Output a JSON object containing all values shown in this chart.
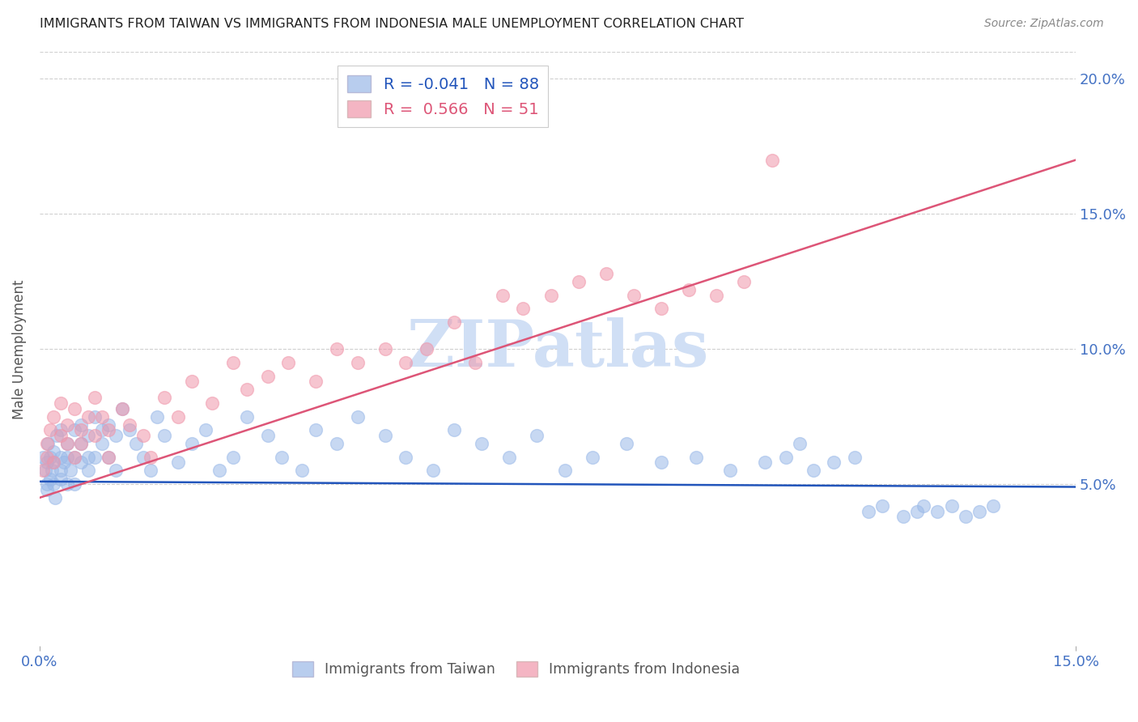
{
  "title": "IMMIGRANTS FROM TAIWAN VS IMMIGRANTS FROM INDONESIA MALE UNEMPLOYMENT CORRELATION CHART",
  "source": "Source: ZipAtlas.com",
  "ylabel_label": "Male Unemployment",
  "xmin": 0.0,
  "xmax": 0.15,
  "ymin": -0.01,
  "ymax": 0.21,
  "yticks": [
    0.05,
    0.1,
    0.15,
    0.2
  ],
  "ytick_labels": [
    "5.0%",
    "10.0%",
    "15.0%",
    "20.0%"
  ],
  "xticks": [
    0.0,
    0.15
  ],
  "xtick_labels": [
    "0.0%",
    "15.0%"
  ],
  "taiwan_color": "#9ab9e8",
  "indonesia_color": "#f096aa",
  "taiwan_R": -0.041,
  "taiwan_N": 88,
  "indonesia_R": 0.566,
  "indonesia_N": 51,
  "taiwan_line_color": "#2255bb",
  "indonesia_line_color": "#dd5577",
  "watermark_color": "#d0dff5",
  "background_color": "#ffffff",
  "grid_color": "#d0d0d0",
  "taiwan_x": [
    0.0005,
    0.0008,
    0.001,
    0.001,
    0.001,
    0.0012,
    0.0015,
    0.0015,
    0.0018,
    0.002,
    0.002,
    0.002,
    0.0022,
    0.0025,
    0.003,
    0.003,
    0.003,
    0.003,
    0.0035,
    0.004,
    0.004,
    0.004,
    0.0045,
    0.005,
    0.005,
    0.005,
    0.006,
    0.006,
    0.006,
    0.007,
    0.007,
    0.007,
    0.008,
    0.008,
    0.009,
    0.009,
    0.01,
    0.01,
    0.011,
    0.011,
    0.012,
    0.013,
    0.014,
    0.015,
    0.016,
    0.017,
    0.018,
    0.02,
    0.022,
    0.024,
    0.026,
    0.028,
    0.03,
    0.033,
    0.035,
    0.038,
    0.04,
    0.043,
    0.046,
    0.05,
    0.053,
    0.057,
    0.06,
    0.064,
    0.068,
    0.072,
    0.076,
    0.08,
    0.085,
    0.09,
    0.095,
    0.1,
    0.105,
    0.108,
    0.11,
    0.112,
    0.115,
    0.118,
    0.12,
    0.122,
    0.125,
    0.127,
    0.128,
    0.13,
    0.132,
    0.134,
    0.136,
    0.138
  ],
  "taiwan_y": [
    0.06,
    0.055,
    0.058,
    0.05,
    0.048,
    0.065,
    0.052,
    0.06,
    0.055,
    0.058,
    0.062,
    0.05,
    0.045,
    0.068,
    0.06,
    0.055,
    0.052,
    0.07,
    0.058,
    0.065,
    0.05,
    0.06,
    0.055,
    0.07,
    0.06,
    0.05,
    0.065,
    0.058,
    0.072,
    0.06,
    0.055,
    0.068,
    0.075,
    0.06,
    0.07,
    0.065,
    0.072,
    0.06,
    0.068,
    0.055,
    0.078,
    0.07,
    0.065,
    0.06,
    0.055,
    0.075,
    0.068,
    0.058,
    0.065,
    0.07,
    0.055,
    0.06,
    0.075,
    0.068,
    0.06,
    0.055,
    0.07,
    0.065,
    0.075,
    0.068,
    0.06,
    0.055,
    0.07,
    0.065,
    0.06,
    0.068,
    0.055,
    0.06,
    0.065,
    0.058,
    0.06,
    0.055,
    0.058,
    0.06,
    0.065,
    0.055,
    0.058,
    0.06,
    0.04,
    0.042,
    0.038,
    0.04,
    0.042,
    0.04,
    0.042,
    0.038,
    0.04,
    0.042
  ],
  "indonesia_x": [
    0.0005,
    0.001,
    0.001,
    0.0015,
    0.002,
    0.002,
    0.003,
    0.003,
    0.004,
    0.004,
    0.005,
    0.005,
    0.006,
    0.006,
    0.007,
    0.008,
    0.008,
    0.009,
    0.01,
    0.01,
    0.012,
    0.013,
    0.015,
    0.016,
    0.018,
    0.02,
    0.022,
    0.025,
    0.028,
    0.03,
    0.033,
    0.036,
    0.04,
    0.043,
    0.046,
    0.05,
    0.053,
    0.056,
    0.06,
    0.063,
    0.067,
    0.07,
    0.074,
    0.078,
    0.082,
    0.086,
    0.09,
    0.094,
    0.098,
    0.102,
    0.106
  ],
  "indonesia_y": [
    0.055,
    0.06,
    0.065,
    0.07,
    0.058,
    0.075,
    0.068,
    0.08,
    0.072,
    0.065,
    0.06,
    0.078,
    0.07,
    0.065,
    0.075,
    0.068,
    0.082,
    0.075,
    0.07,
    0.06,
    0.078,
    0.072,
    0.068,
    0.06,
    0.082,
    0.075,
    0.088,
    0.08,
    0.095,
    0.085,
    0.09,
    0.095,
    0.088,
    0.1,
    0.095,
    0.1,
    0.095,
    0.1,
    0.11,
    0.095,
    0.12,
    0.115,
    0.12,
    0.125,
    0.128,
    0.12,
    0.115,
    0.122,
    0.12,
    0.125,
    0.17
  ]
}
